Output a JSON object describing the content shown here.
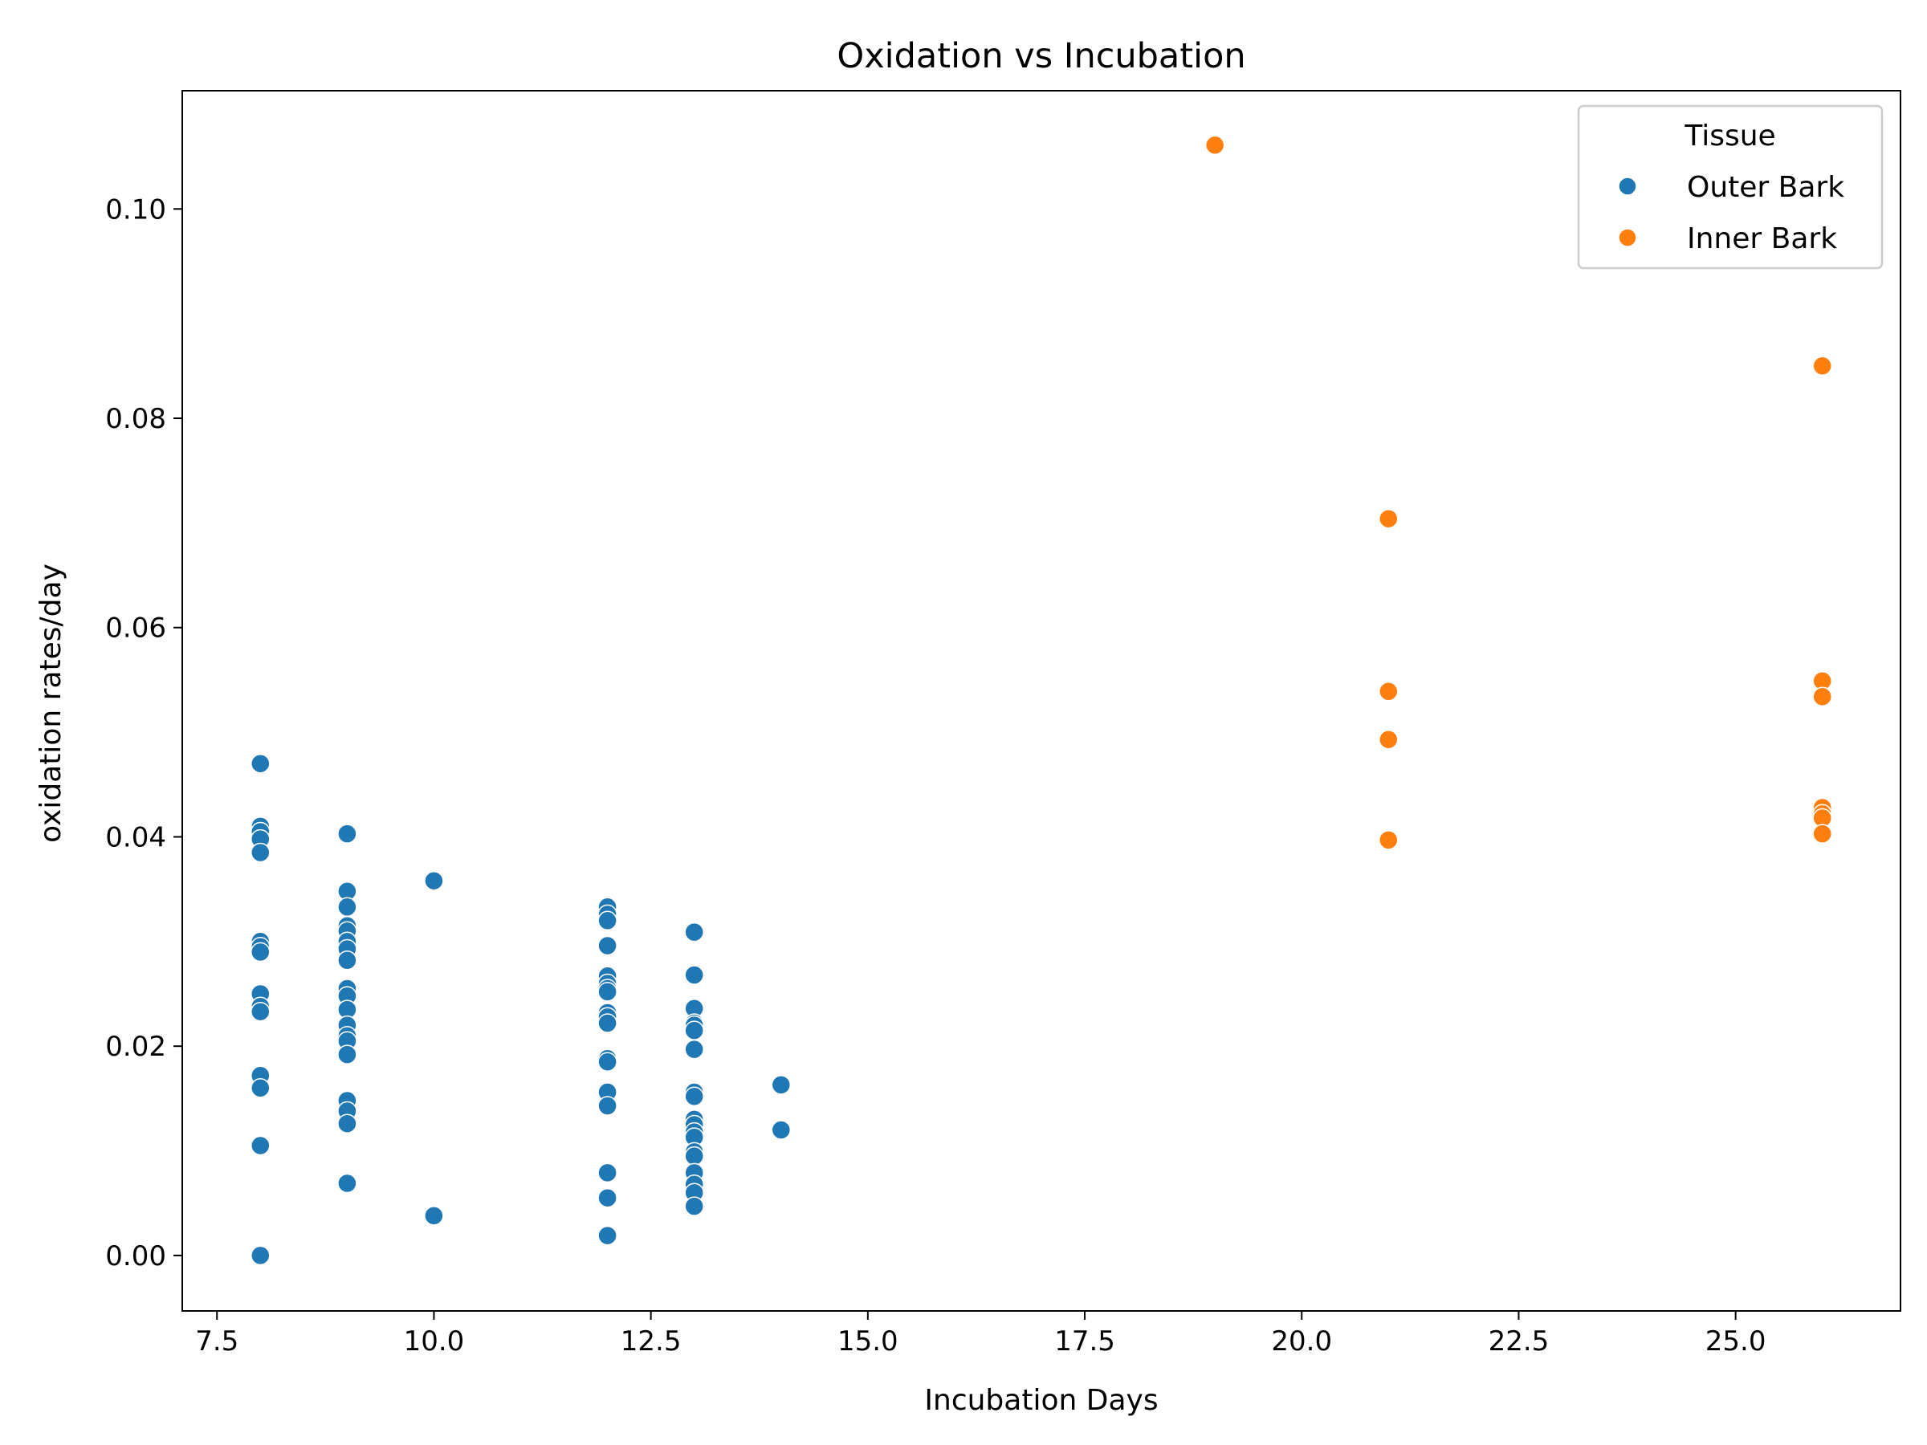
{
  "chart_data": {
    "type": "scatter",
    "title": "Oxidation vs Incubation",
    "xlabel": "Incubation Days",
    "ylabel": "oxidation rates/day",
    "xlim": [
      7.1,
      26.9
    ],
    "ylim": [
      -0.0053,
      0.1113
    ],
    "xticks": [
      7.5,
      10.0,
      12.5,
      15.0,
      17.5,
      20.0,
      22.5,
      25.0
    ],
    "xtick_labels": [
      "7.5",
      "10.0",
      "12.5",
      "15.0",
      "17.5",
      "20.0",
      "22.5",
      "25.0"
    ],
    "yticks": [
      0.0,
      0.02,
      0.04,
      0.06,
      0.08,
      0.1
    ],
    "ytick_labels": [
      "0.00",
      "0.02",
      "0.04",
      "0.06",
      "0.08",
      "0.10"
    ],
    "grid": false,
    "legend": {
      "title": "Tissue",
      "position": "top-right"
    },
    "series": [
      {
        "name": "Outer Bark",
        "color": "#1f77b4",
        "points": [
          [
            8,
            0.047
          ],
          [
            8,
            0.041
          ],
          [
            8,
            0.0405
          ],
          [
            8,
            0.0398
          ],
          [
            8,
            0.0385
          ],
          [
            8,
            0.03
          ],
          [
            8,
            0.0295
          ],
          [
            8,
            0.029
          ],
          [
            8,
            0.025
          ],
          [
            8,
            0.0238
          ],
          [
            8,
            0.0233
          ],
          [
            8,
            0.0172
          ],
          [
            8,
            0.016
          ],
          [
            8,
            0.0105
          ],
          [
            8,
            0.0
          ],
          [
            9,
            0.0403
          ],
          [
            9,
            0.0348
          ],
          [
            9,
            0.0333
          ],
          [
            9,
            0.0315
          ],
          [
            9,
            0.031
          ],
          [
            9,
            0.03
          ],
          [
            9,
            0.0293
          ],
          [
            9,
            0.0282
          ],
          [
            9,
            0.0255
          ],
          [
            9,
            0.0248
          ],
          [
            9,
            0.0235
          ],
          [
            9,
            0.022
          ],
          [
            9,
            0.021
          ],
          [
            9,
            0.0205
          ],
          [
            9,
            0.0192
          ],
          [
            9,
            0.0148
          ],
          [
            9,
            0.0138
          ],
          [
            9,
            0.0126
          ],
          [
            9,
            0.0069
          ],
          [
            10,
            0.0358
          ],
          [
            10,
            0.0038
          ],
          [
            12,
            0.0333
          ],
          [
            12,
            0.0326
          ],
          [
            12,
            0.032
          ],
          [
            12,
            0.0296
          ],
          [
            12,
            0.0267
          ],
          [
            12,
            0.026
          ],
          [
            12,
            0.0255
          ],
          [
            12,
            0.0252
          ],
          [
            12,
            0.0232
          ],
          [
            12,
            0.0228
          ],
          [
            12,
            0.0222
          ],
          [
            12,
            0.0188
          ],
          [
            12,
            0.0185
          ],
          [
            12,
            0.0156
          ],
          [
            12,
            0.0143
          ],
          [
            12,
            0.0079
          ],
          [
            12,
            0.0055
          ],
          [
            12,
            0.0019
          ],
          [
            13,
            0.0309
          ],
          [
            13,
            0.0268
          ],
          [
            13,
            0.0236
          ],
          [
            13,
            0.0222
          ],
          [
            13,
            0.022
          ],
          [
            13,
            0.0215
          ],
          [
            13,
            0.0197
          ],
          [
            13,
            0.0156
          ],
          [
            13,
            0.0152
          ],
          [
            13,
            0.013
          ],
          [
            13,
            0.0125
          ],
          [
            13,
            0.0118
          ],
          [
            13,
            0.0113
          ],
          [
            13,
            0.0099
          ],
          [
            13,
            0.0095
          ],
          [
            13,
            0.0079
          ],
          [
            13,
            0.0068
          ],
          [
            13,
            0.006
          ],
          [
            13,
            0.0047
          ],
          [
            14,
            0.0163
          ],
          [
            14,
            0.012
          ]
        ]
      },
      {
        "name": "Inner Bark",
        "color": "#ff7f0e",
        "points": [
          [
            19,
            0.1061
          ],
          [
            21,
            0.0704
          ],
          [
            21,
            0.0539
          ],
          [
            21,
            0.0493
          ],
          [
            21,
            0.0397
          ],
          [
            26,
            0.085
          ],
          [
            26,
            0.0549
          ],
          [
            26,
            0.0534
          ],
          [
            26,
            0.0428
          ],
          [
            26,
            0.0422
          ],
          [
            26,
            0.0418
          ],
          [
            26,
            0.0403
          ]
        ]
      }
    ]
  }
}
